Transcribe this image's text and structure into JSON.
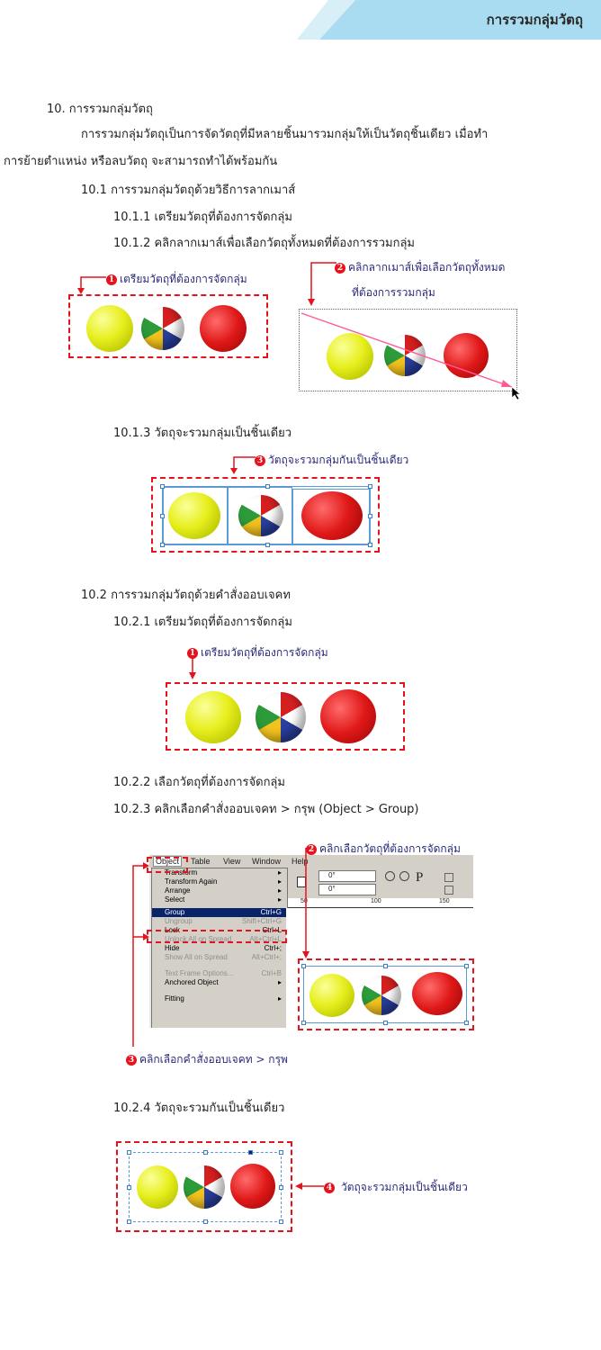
{
  "header": {
    "title": "การรวมกลุ่มวัตถุ"
  },
  "section": {
    "heading": "10. การรวมกลุ่มวัตถุ",
    "intro_line1": "การรวมกลุ่มวัตถุเป็นการจัดวัตถุที่มีหลายชิ้นมารวมกลุ่มให้เป็นวัตถุชิ้นเดียว เมื่อทำ",
    "intro_line2": "การย้ายตำแหน่ง หรือลบวัตถุ จะสามารถทำได้พร้อมกัน"
  },
  "part1": {
    "title": "10.1 การรวมกลุ่มวัตถุด้วยวิธีการลากเมาส์",
    "step1": "10.1.1 เตรียมวัตถุที่ต้องการจัดกลุ่ม",
    "step2": "10.1.2 คลิกลากเมาส์เพื่อเลือกวัตถุทั้งหมดที่ต้องการรวมกลุ่ม",
    "callout1": "เตรียมวัตถุที่ต้องการจัดกลุ่ม",
    "callout2_line1": "คลิกลากเมาส์เพื่อเลือกวัตถุทั้งหมด",
    "callout2_line2": "ที่ต้องการรวมกลุ่ม",
    "step3": "10.1.3 วัตถุจะรวมกลุ่มเป็นชิ้นเดียว",
    "callout3": "วัตถุจะรวมกลุ่มกันเป็นชิ้นเดียว"
  },
  "part2": {
    "title": "10.2 การรวมกลุ่มวัตถุด้วยคำสั่งออบเจคท",
    "step1": "10.2.1 เตรียมวัตถุที่ต้องการจัดกลุ่ม",
    "callout1": "เตรียมวัตถุที่ต้องการจัดกลุ่ม",
    "step2": "10.2.2 เลือกวัตถุที่ต้องการจัดกลุ่ม",
    "step3": "10.2.3 คลิกเลือกคำสั่งออบเจคท > กรุพ (Object > Group)",
    "callout2": "คลิกเลือกวัตถุที่ต้องการจัดกลุ่ม",
    "callout3": "คลิกเลือกคำสั่งออบเจคท > กรุพ",
    "step4": "10.2.4 วัตถุจะรวมกันเป็นชิ้นเดียว",
    "callout4": "วัตถุจะรวมกลุ่มเป็นชิ้นเดียว"
  },
  "numbers": {
    "n1": "1",
    "n2": "2",
    "n3": "3",
    "n4": "4"
  },
  "menubar": {
    "items": [
      "Object",
      "Table",
      "View",
      "Window",
      "Help"
    ]
  },
  "menu": {
    "transform": "Transform",
    "transform_again": "Transform Again",
    "arrange": "Arrange",
    "select": "Select",
    "group": "Group",
    "group_sc": "Ctrl+G",
    "ungroup": "Ungroup",
    "ungroup_sc": "Shift+Ctrl+G",
    "lock": "Lock",
    "lock_sc": "Ctrl+L",
    "unlock": "Unlock All on Spread",
    "unlock_sc": "Alt+Ctrl+L",
    "hide": "Hide",
    "hide_sc": "Ctrl+;",
    "show_all": "Show All on Spread",
    "show_all_sc": "Alt+Ctrl+;",
    "text_frame": "Text Frame Options...",
    "text_frame_sc": "Ctrl+B",
    "anchored": "Anchored Object",
    "fitting": "Fitting"
  },
  "toolbar": {
    "angle1": "0°",
    "angle2": "0°",
    "p_glyph": "P"
  },
  "ruler": {
    "r50": "50",
    "r100": "100",
    "r150": "150"
  },
  "colors": {
    "accent_red": "#e5131d",
    "header_blue": "#a9dcf0",
    "callout_text": "#2a2a7a"
  }
}
